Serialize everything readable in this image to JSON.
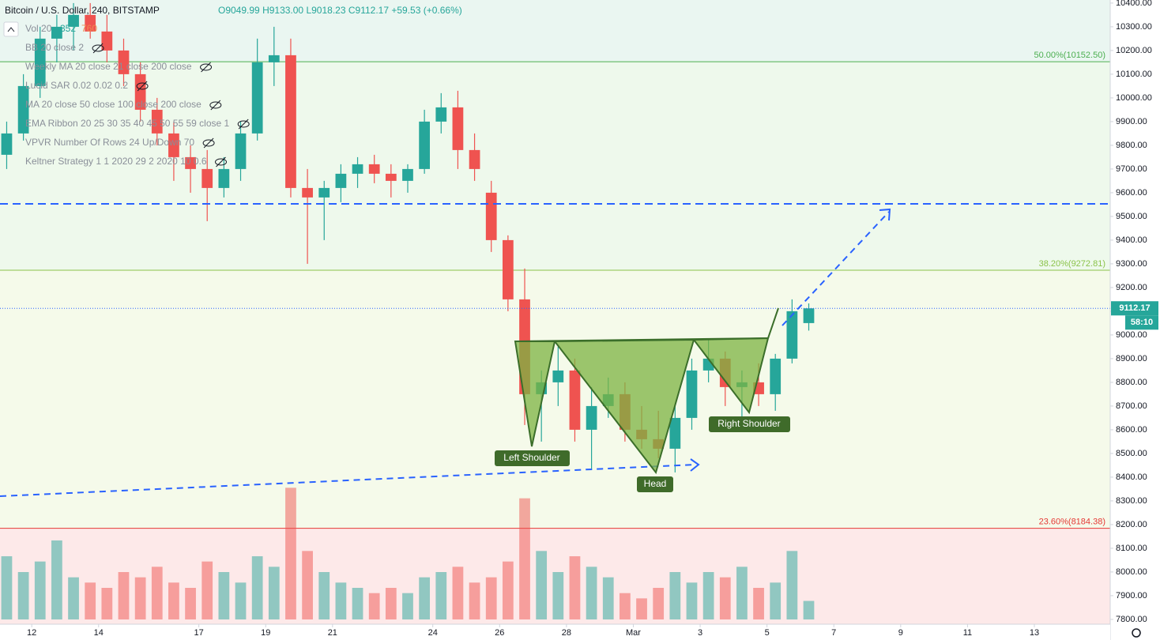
{
  "chart_data": {
    "type": "candlestick",
    "title": "Bitcoin / U.S. Dollar, 240, BITSTAMP",
    "ohlc": [
      "O9049.99",
      "H9133.00",
      "L9018.23",
      "C9112.17",
      "+59.53 (+0.66%)"
    ],
    "indicators": [
      "Vol 20",
      "BB 20 close 2",
      "Weekly MA 20 close 21 close 200 close",
      "Lucid SAR 0.02 0.02 0.2",
      "MA 20 close 50 close 100 close 200 close",
      "EMA Ribbon 20 25 30 35 40 45 50 55 59 close 1",
      "VPVR Number Of Rows 24 Up/Down 70",
      "Keltner Strategy 1 1 2020 29 2 2020 10 0.6"
    ],
    "volume_values": [
      "352",
      "760"
    ],
    "countdown": "58:10",
    "annotations": [
      "Left Shoulder",
      "Head",
      "Right Shoulder"
    ],
    "up_color": "#26a69a",
    "down_color": "#ef5350",
    "x": [
      11.25,
      11.75,
      12.25,
      12.75,
      13.25,
      13.75,
      14.25,
      14.75,
      15.25,
      15.75,
      16.25,
      16.75,
      17.25,
      17.75,
      18.25,
      18.75,
      19.25,
      19.75,
      20.25,
      20.75,
      21.25,
      21.75,
      22.25,
      22.75,
      23.25,
      23.75,
      24.25,
      24.75,
      25.25,
      25.75,
      26.25,
      26.75,
      27.25,
      27.75,
      28.25,
      28.75,
      29.25,
      29.75,
      30.25,
      30.75,
      31.25,
      31.75,
      32.25,
      32.75,
      33.25,
      33.75,
      34.25,
      34.75,
      35.25
    ],
    "open": [
      9760,
      9850,
      10050,
      10250,
      10300,
      10350,
      10280,
      10200,
      10100,
      9950,
      9850,
      9750,
      9700,
      9620,
      9700,
      9850,
      10150,
      10180,
      9620,
      9580,
      9620,
      9680,
      9720,
      9680,
      9650,
      9700,
      9900,
      9960,
      9780,
      9600,
      9400,
      9150,
      8750,
      8800,
      8850,
      8600,
      8700,
      8750,
      8600,
      8560,
      8520,
      8650,
      8850,
      8900,
      8780,
      8800,
      8750,
      8900,
      9049.99
    ],
    "high": [
      9900,
      10100,
      10300,
      10350,
      10400,
      10400,
      10350,
      10250,
      10150,
      10000,
      9900,
      9800,
      9780,
      9750,
      9900,
      10250,
      10300,
      10250,
      9700,
      9650,
      9720,
      9750,
      9760,
      9720,
      9720,
      9950,
      10020,
      10030,
      9850,
      9650,
      9420,
      9280,
      8850,
      8950,
      8900,
      8780,
      8820,
      8800,
      8700,
      8680,
      8700,
      8900,
      8980,
      8930,
      8850,
      8880,
      8920,
      9150,
      9133
    ],
    "low": [
      9700,
      9820,
      10000,
      10150,
      10200,
      10250,
      10150,
      10050,
      9900,
      9800,
      9650,
      9600,
      9480,
      9580,
      9650,
      9820,
      10050,
      9580,
      9300,
      9400,
      9560,
      9620,
      9640,
      9580,
      9600,
      9680,
      9850,
      9700,
      9650,
      9350,
      9100,
      8620,
      8550,
      8700,
      8550,
      8430,
      8650,
      8550,
      8520,
      8480,
      8420,
      8600,
      8800,
      8700,
      8650,
      8700,
      8680,
      8880,
      9018.23
    ],
    "close": [
      9850,
      10050,
      10250,
      10300,
      10350,
      10280,
      10200,
      10100,
      9950,
      9850,
      9750,
      9700,
      9620,
      9700,
      9850,
      10150,
      10180,
      9620,
      9580,
      9620,
      9680,
      9720,
      9680,
      9650,
      9700,
      9900,
      9960,
      9780,
      9700,
      9400,
      9150,
      8750,
      8800,
      8850,
      8600,
      8700,
      8750,
      8600,
      8560,
      8520,
      8650,
      8850,
      8900,
      8780,
      8800,
      8750,
      8900,
      9100,
      9112.17
    ],
    "volume": [
      1200,
      900,
      1100,
      1500,
      800,
      700,
      600,
      900,
      800,
      1000,
      700,
      600,
      1100,
      900,
      700,
      1200,
      1000,
      2500,
      1300,
      900,
      700,
      600,
      500,
      600,
      500,
      800,
      900,
      1000,
      700,
      800,
      1100,
      2300,
      1300,
      900,
      1200,
      1000,
      800,
      500,
      400,
      600,
      900,
      700,
      900,
      800,
      1000,
      600,
      700,
      1300,
      352
    ],
    "volume_ylim": [
      0,
      3000
    ],
    "levels": [
      {
        "label": "50.00%(10152.50)",
        "value": 10152.5,
        "color": "#4caf50",
        "zone": "#eaf6f1"
      },
      {
        "label": "38.20%(9272.81)",
        "value": 9272.81,
        "color": "#8bc34a",
        "zone": "#eef9ec"
      },
      {
        "label": "23.60%(8184.38)",
        "value": 8184.38,
        "color": "#e53935",
        "zone": "#f5faea"
      }
    ],
    "below_zone": "#fde9e9",
    "xlim": [
      11.05,
      44.27
    ],
    "ylim": [
      7713,
      10413
    ],
    "xticks": [
      12,
      14,
      17,
      19,
      21,
      24,
      26,
      28,
      {
        "value": 30,
        "label": "Mar"
      },
      {
        "value": 32,
        "label": "3"
      },
      {
        "value": 34,
        "label": "5"
      },
      {
        "value": 36,
        "label": "7"
      },
      {
        "value": 38,
        "label": "9"
      },
      {
        "value": 40,
        "label": "11"
      },
      {
        "value": 42,
        "label": "13"
      }
    ],
    "yticks": [
      {
        "value": 7800,
        "label": "7800.00"
      },
      {
        "value": 7900,
        "label": "7900.00"
      },
      {
        "value": 8000,
        "label": "8000.00"
      },
      {
        "value": 8100,
        "label": "8100.00"
      },
      {
        "value": 8200,
        "label": "8200.00"
      },
      {
        "value": 8300,
        "label": "8300.00"
      },
      {
        "value": 8400,
        "label": "8400.00"
      },
      {
        "value": 8500,
        "label": "8500.00"
      },
      {
        "value": 8600,
        "label": "8600.00"
      },
      {
        "value": 8700,
        "label": "8700.00"
      },
      {
        "value": 8800,
        "label": "8800.00"
      },
      {
        "value": 8900,
        "label": "8900.00"
      },
      {
        "value": 9000,
        "label": "9000.00"
      },
      {
        "value": 9100,
        "label": "9100.00"
      },
      {
        "value": 9200,
        "label": "9200.00"
      },
      {
        "value": 9300,
        "label": "9300.00"
      },
      {
        "value": 9400,
        "label": "9400.00"
      },
      {
        "value": 9500,
        "label": "9500.00"
      },
      {
        "value": 9600,
        "label": "9600.00"
      },
      {
        "value": 9700,
        "label": "9700.00"
      },
      {
        "value": 9800,
        "label": "9800.00"
      },
      {
        "value": 9900,
        "label": "9900.00"
      },
      {
        "value": 10000,
        "label": "10000.00"
      },
      {
        "value": 10100,
        "label": "10100.00"
      },
      {
        "value": 10200,
        "label": "10200.00"
      },
      {
        "value": 10300,
        "label": "10300.00"
      },
      {
        "value": 10400,
        "label": "10400.00"
      }
    ]
  }
}
